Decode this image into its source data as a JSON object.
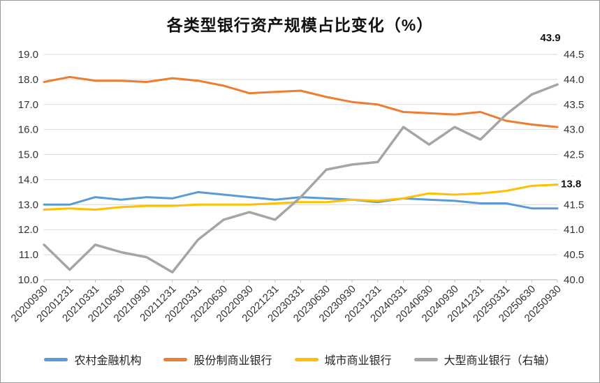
{
  "chart_data": {
    "type": "line",
    "title": "各类型银行资产规模占比变化（%）",
    "legend_position": "bottom",
    "grid": true,
    "categories": [
      "20200930",
      "20201231",
      "20210331",
      "20210630",
      "20210930",
      "20211231",
      "20220331",
      "20220630",
      "20220930",
      "20221231",
      "20230331",
      "20230630",
      "20230930",
      "20231231",
      "20240331",
      "20240630",
      "20240930",
      "20241231",
      "20250331",
      "20250630",
      "20250930"
    ],
    "series": [
      {
        "name": "农村金融机构",
        "color": "#5B9BD5",
        "axis": "left",
        "width": 3,
        "values": [
          13.0,
          13.0,
          13.3,
          13.2,
          13.3,
          13.25,
          13.5,
          13.4,
          13.3,
          13.2,
          13.3,
          13.25,
          13.2,
          13.1,
          13.25,
          13.2,
          13.15,
          13.05,
          13.05,
          12.85,
          12.85
        ]
      },
      {
        "name": "股份制商业银行",
        "color": "#ED7D31",
        "axis": "left",
        "width": 3,
        "values": [
          17.9,
          18.1,
          17.95,
          17.95,
          17.9,
          18.05,
          17.95,
          17.75,
          17.45,
          17.5,
          17.55,
          17.3,
          17.1,
          17.0,
          16.7,
          16.65,
          16.6,
          16.7,
          16.35,
          16.2,
          16.1
        ]
      },
      {
        "name": "城市商业银行",
        "color": "#FFC000",
        "axis": "left",
        "width": 3,
        "values": [
          12.8,
          12.85,
          12.8,
          12.9,
          12.95,
          12.95,
          13.0,
          13.0,
          13.0,
          13.05,
          13.1,
          13.1,
          13.2,
          13.15,
          13.25,
          13.45,
          13.4,
          13.45,
          13.55,
          13.75,
          13.8
        ]
      },
      {
        "name": "大型商业银行（右轴）",
        "color": "#A5A5A5",
        "axis": "right",
        "width": 3.5,
        "values": [
          40.7,
          40.2,
          40.7,
          40.55,
          40.45,
          40.15,
          40.8,
          41.2,
          41.35,
          41.2,
          41.65,
          42.2,
          42.3,
          42.35,
          43.05,
          42.7,
          43.05,
          42.8,
          43.3,
          43.7,
          43.9
        ]
      }
    ],
    "left_axis": {
      "min": 10,
      "max": 19,
      "tick_labels": [
        "19.0",
        "18.0",
        "17.0",
        "16.0",
        "15.0",
        "14.0",
        "13.0",
        "12.0",
        "11.0",
        "10.0"
      ]
    },
    "right_axis": {
      "min": 40,
      "max": 44.5,
      "tick_labels": [
        "44.5",
        "44.0",
        "43.5",
        "43.0",
        "42.5",
        "42.0",
        "41.5",
        "41.0",
        "40.5",
        "40.0"
      ]
    },
    "annotations": [
      {
        "text": "43.9",
        "label_for": "大型商业银行（右轴）"
      },
      {
        "text": "13.8",
        "label_for": "城市商业银行"
      }
    ],
    "style": {
      "gridline_color": "#D9D9D9",
      "axis_line_color": "#BFBFBF",
      "tick_color": "#333333",
      "title_color": "#111111",
      "annotation_color": "#111111",
      "background": "#FFFFFF",
      "border_color": "#9A9A9A"
    }
  }
}
